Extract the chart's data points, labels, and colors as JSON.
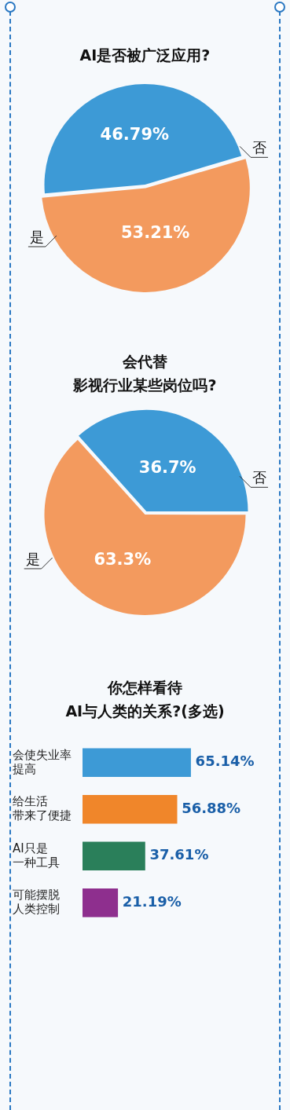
{
  "chart_data": [
    {
      "type": "pie",
      "title": "AI是否被广泛应用?",
      "categories": [
        "否",
        "是"
      ],
      "values": [
        46.79,
        53.21
      ],
      "colors": [
        "#3d9ad6",
        "#f39a5e"
      ],
      "value_labels": [
        "46.79%",
        "53.21%"
      ],
      "legend": false
    },
    {
      "type": "pie",
      "title": "会代替影视行业某些岗位吗?",
      "categories": [
        "否",
        "是"
      ],
      "values": [
        36.7,
        63.3
      ],
      "colors": [
        "#3d9ad6",
        "#f39a5e"
      ],
      "value_labels": [
        "36.7%",
        "63.3%"
      ],
      "legend": false
    },
    {
      "type": "bar",
      "orientation": "horizontal",
      "tick_labels": "y",
      "title": "你怎样看待AI与人类的关系?(多选)",
      "categories": [
        "会使失业率提高",
        "给生活带来了便捷",
        "AI只是一种工具",
        "可能摆脱人类控制"
      ],
      "values": [
        65.14,
        56.88,
        37.61,
        21.19
      ],
      "colors": [
        "#3d9ad6",
        "#f0862a",
        "#2a7f5a",
        "#8e2f8e"
      ],
      "value_labels": [
        "65.14%",
        "56.88%",
        "37.61%",
        "21.19%"
      ],
      "legend": false
    }
  ]
}
